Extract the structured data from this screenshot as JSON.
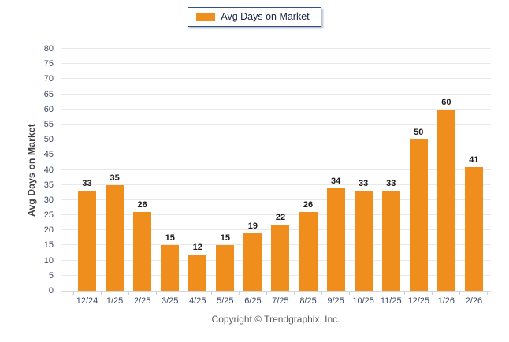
{
  "legend": {
    "label": "Avg Days on Market",
    "position": "top-center"
  },
  "y_axis_title": "Avg Days on Market",
  "footer": {
    "copyright": "Copyright © Trendgraphix, Inc."
  },
  "colors": {
    "bar": "#EF8E1C",
    "legend_border": "#31517E",
    "legend_text": "#1A2440",
    "grid_line": "#E9E9E9",
    "axis_line": "#D6D6D6",
    "tick_mark": "#CFCFCF",
    "tick_label": "#3D4A63",
    "data_label": "#1C1C1C",
    "y_title": "#3F3F3F",
    "copyright_text": "#595959",
    "background": "#FFFFFF"
  },
  "chart_data": {
    "type": "bar",
    "title": "Avg Days on Market",
    "categories": [
      "12/24",
      "1/25",
      "2/25",
      "3/25",
      "4/25",
      "5/25",
      "6/25",
      "7/25",
      "8/25",
      "9/25",
      "10/25",
      "11/25",
      "12/25",
      "1/26",
      "2/26"
    ],
    "values": [
      33,
      35,
      26,
      15,
      12,
      15,
      19,
      22,
      26,
      34,
      33,
      33,
      50,
      60,
      41
    ],
    "series": [
      {
        "name": "Avg Days on Market",
        "values": [
          33,
          35,
          26,
          15,
          12,
          15,
          19,
          22,
          26,
          34,
          33,
          33,
          50,
          60,
          41
        ]
      }
    ],
    "xlabel": "",
    "ylabel": "Avg Days on Market",
    "ylim": [
      0,
      80
    ],
    "y_tick_step": 5,
    "y_ticks": [
      0,
      5,
      10,
      15,
      20,
      25,
      30,
      35,
      40,
      45,
      50,
      55,
      60,
      65,
      70,
      75,
      80
    ],
    "grid": "horizontal",
    "data_labels": true,
    "legend_entries": [
      "Avg Days on Market"
    ],
    "legend_position": "top-center"
  }
}
